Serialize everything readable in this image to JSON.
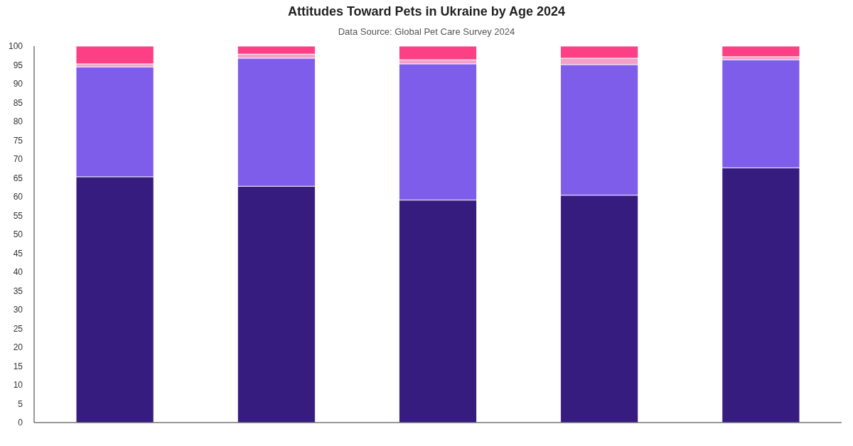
{
  "chart_data": {
    "type": "bar",
    "stacked": true,
    "title": "Attitudes Toward Pets in Ukraine by Age 2024",
    "subtitle": "Data Source: Global Pet Care Survey 2024",
    "categories": [
      null,
      null,
      null,
      null,
      null
    ],
    "series": [
      {
        "color": "#371c80",
        "values": [
          65.3,
          62.8,
          59.1,
          60.4,
          67.7
        ]
      },
      {
        "color": "#7e5deb",
        "values": [
          29.2,
          34.0,
          36.2,
          34.7,
          28.7
        ]
      },
      {
        "color": "#f4a0c8",
        "values": [
          0.8,
          1.1,
          1.1,
          1.7,
          0.8
        ]
      },
      {
        "color": "#fd3f86",
        "values": [
          4.7,
          2.1,
          3.6,
          3.2,
          2.8
        ]
      }
    ],
    "ylim": [
      0,
      100
    ],
    "yticks": [
      0,
      5,
      10,
      15,
      20,
      25,
      30,
      35,
      40,
      45,
      50,
      55,
      60,
      65,
      70,
      75,
      80,
      85,
      90,
      95,
      100
    ],
    "grid": false
  }
}
